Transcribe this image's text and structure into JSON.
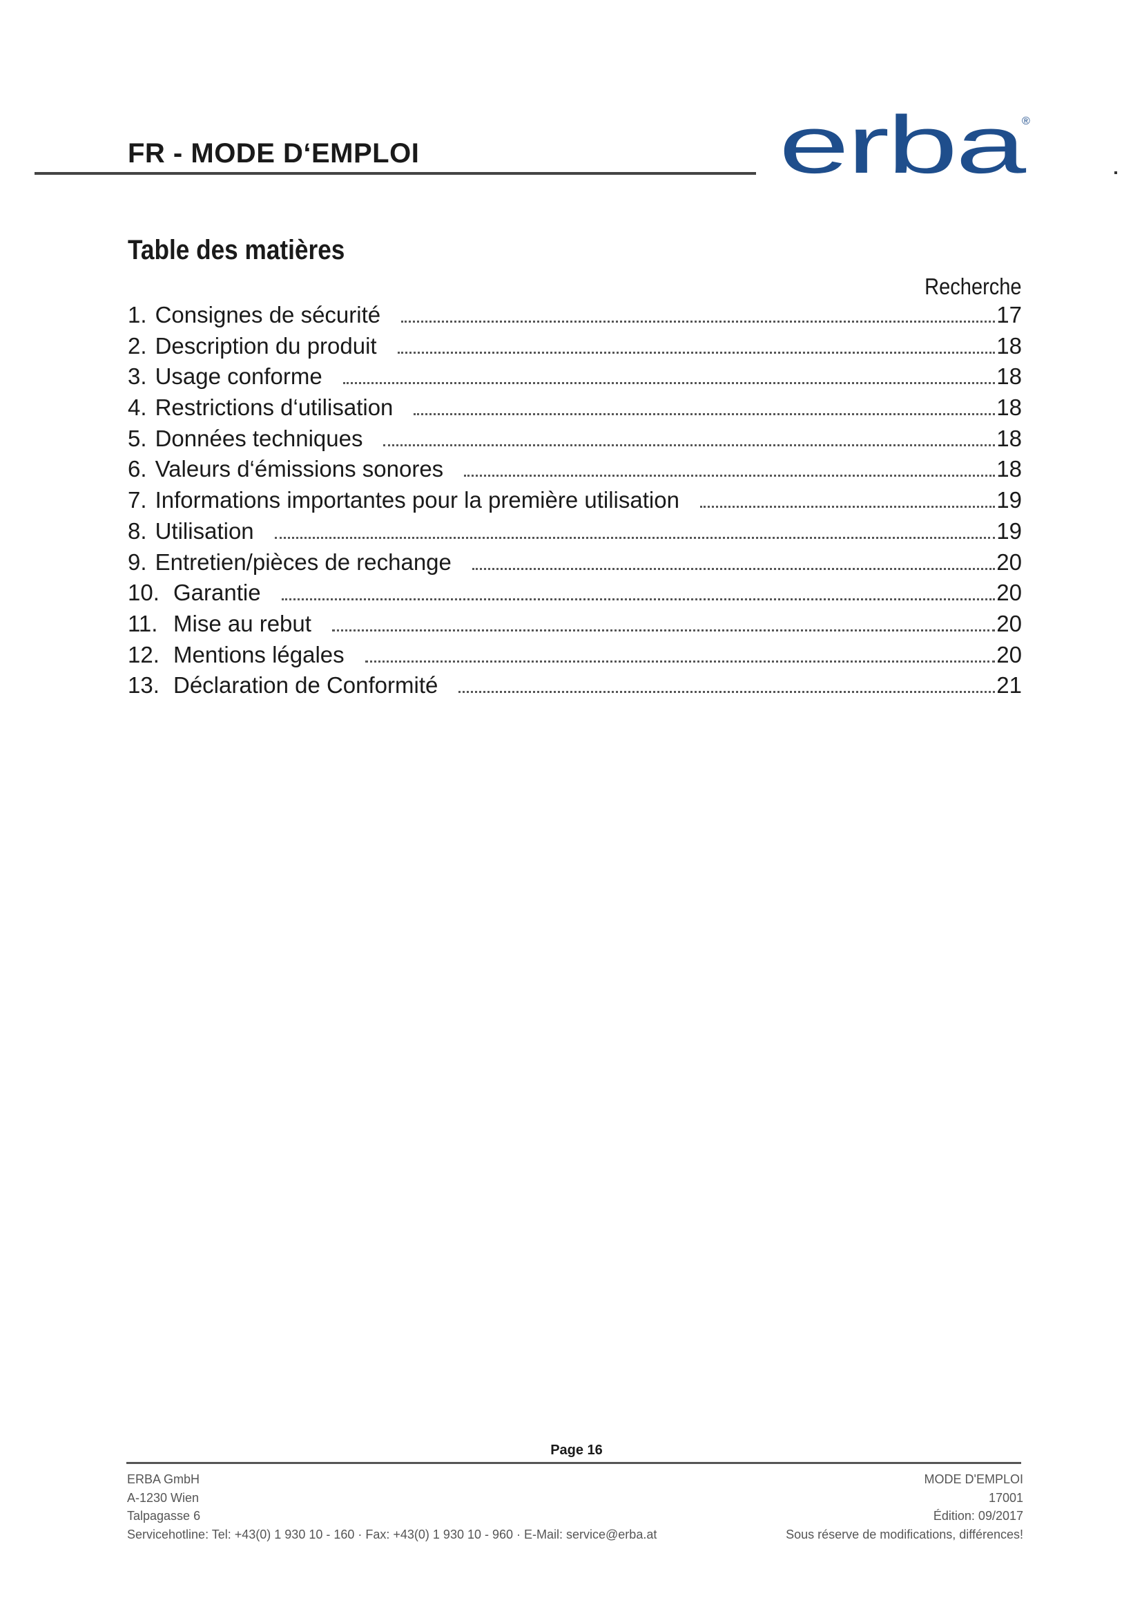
{
  "header": {
    "title": "FR - MODE D‘EMPLOI",
    "logo_text": "erba",
    "logo_color": "#1f4e8c"
  },
  "toc": {
    "title": "Table des matières",
    "column_label": "Recherche",
    "items": [
      {
        "num": "1.",
        "label": "Consignes de sécurité",
        "page": "17"
      },
      {
        "num": "2.",
        "label": "Description du produit",
        "page": "18"
      },
      {
        "num": "3.",
        "label": "Usage conforme",
        "page": "18"
      },
      {
        "num": "4.",
        "label": "Restrictions d‘utilisation",
        "page": "18"
      },
      {
        "num": "5.",
        "label": "Données techniques",
        "page": "18"
      },
      {
        "num": "6.",
        "label": "Valeurs d‘émissions sonores",
        "page": "18"
      },
      {
        "num": "7.",
        "label": "Informations importantes pour la première utilisation",
        "page": "19"
      },
      {
        "num": "8.",
        "label": "Utilisation",
        "page": "19"
      },
      {
        "num": "9.",
        "label": "Entretien/pièces de rechange",
        "page": "20"
      },
      {
        "num": "10.",
        "label": "Garantie",
        "page": "20"
      },
      {
        "num": "11.",
        "label": "Mise au rebut",
        "page": "20"
      },
      {
        "num": "12.",
        "label": "Mentions légales",
        "page": "20"
      },
      {
        "num": "13.",
        "label": "Déclaration de Conformité",
        "page": "21"
      }
    ]
  },
  "footer": {
    "page": "Page 16",
    "left": [
      "ERBA GmbH",
      "A-1230 Wien",
      "Talpagasse 6",
      "Servicehotline: Tel: +43(0) 1 930 10 - 160 · Fax: +43(0) 1 930 10 - 960 · E-Mail: service@erba.at"
    ],
    "right": [
      "MODE D'EMPLOI",
      "17001",
      "Édition: 09/2017",
      "Sous réserve de modifications, différences!"
    ]
  }
}
